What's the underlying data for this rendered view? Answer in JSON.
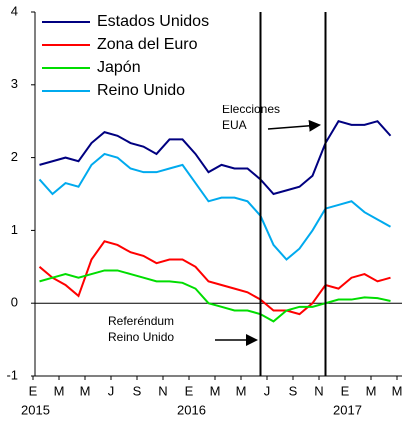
{
  "chart_data": {
    "type": "line",
    "x": [
      "2015-01",
      "2015-02",
      "2015-03",
      "2015-04",
      "2015-05",
      "2015-06",
      "2015-07",
      "2015-08",
      "2015-09",
      "2015-10",
      "2015-11",
      "2015-12",
      "2016-01",
      "2016-02",
      "2016-03",
      "2016-04",
      "2016-05",
      "2016-06",
      "2016-07",
      "2016-08",
      "2016-09",
      "2016-10",
      "2016-11",
      "2016-12",
      "2017-01",
      "2017-02",
      "2017-03",
      "2017-04"
    ],
    "series": [
      {
        "name": "Estados Unidos",
        "color": "#000080",
        "values": [
          1.9,
          1.95,
          2.0,
          1.95,
          2.2,
          2.35,
          2.3,
          2.2,
          2.15,
          2.05,
          2.25,
          2.25,
          2.05,
          1.8,
          1.9,
          1.85,
          1.85,
          1.7,
          1.5,
          1.55,
          1.6,
          1.75,
          2.2,
          2.5,
          2.45,
          2.45,
          2.5,
          2.3
        ]
      },
      {
        "name": "Zona del Euro",
        "color": "#ff0000",
        "values": [
          0.5,
          0.35,
          0.25,
          0.1,
          0.6,
          0.85,
          0.8,
          0.7,
          0.65,
          0.55,
          0.6,
          0.6,
          0.5,
          0.3,
          0.25,
          0.2,
          0.15,
          0.05,
          -0.1,
          -0.1,
          -0.15,
          0.0,
          0.25,
          0.2,
          0.35,
          0.4,
          0.3,
          0.35
        ]
      },
      {
        "name": "Japón",
        "color": "#00dd00",
        "values": [
          0.3,
          0.35,
          0.4,
          0.35,
          0.4,
          0.45,
          0.45,
          0.4,
          0.35,
          0.3,
          0.3,
          0.28,
          0.2,
          0.0,
          -0.05,
          -0.1,
          -0.1,
          -0.15,
          -0.25,
          -0.1,
          -0.05,
          -0.05,
          0.0,
          0.05,
          0.05,
          0.08,
          0.07,
          0.03
        ]
      },
      {
        "name": "Reino Unido",
        "color": "#00aaee",
        "values": [
          1.7,
          1.5,
          1.65,
          1.6,
          1.9,
          2.05,
          2.0,
          1.85,
          1.8,
          1.8,
          1.85,
          1.9,
          1.65,
          1.4,
          1.45,
          1.45,
          1.4,
          1.2,
          0.8,
          0.6,
          0.75,
          1.0,
          1.3,
          1.35,
          1.4,
          1.25,
          1.15,
          1.05
        ]
      }
    ],
    "ylim": [
      -1,
      4
    ],
    "yticks": [
      -1,
      0,
      1,
      2,
      3,
      4
    ],
    "xticks": [
      {
        "value": "2015-01",
        "label": "E"
      },
      {
        "value": "2015-03",
        "label": "M"
      },
      {
        "value": "2015-05",
        "label": "M"
      },
      {
        "value": "2015-07",
        "label": "J"
      },
      {
        "value": "2015-09",
        "label": "S"
      },
      {
        "value": "2015-11",
        "label": "N"
      },
      {
        "value": "2016-01",
        "label": "E"
      },
      {
        "value": "2016-03",
        "label": "M"
      },
      {
        "value": "2016-05",
        "label": "M"
      },
      {
        "value": "2016-07",
        "label": "J"
      },
      {
        "value": "2016-09",
        "label": "S"
      },
      {
        "value": "2016-11",
        "label": "N"
      },
      {
        "value": "2017-01",
        "label": "E"
      },
      {
        "value": "2017-03",
        "label": "M"
      },
      {
        "value": "2017-05",
        "label": "M"
      }
    ],
    "year_labels": [
      {
        "value": "2015-01",
        "label": "2015"
      },
      {
        "value": "2016-01",
        "label": "2016"
      },
      {
        "value": "2017-01",
        "label": "2017"
      }
    ],
    "events": [
      {
        "x": "2016-06",
        "label": [
          "Referéndum",
          "Reino Unido"
        ]
      },
      {
        "x": "2016-11",
        "label": [
          "Elecciones",
          "EUA"
        ]
      }
    ],
    "legend": "upper left"
  }
}
